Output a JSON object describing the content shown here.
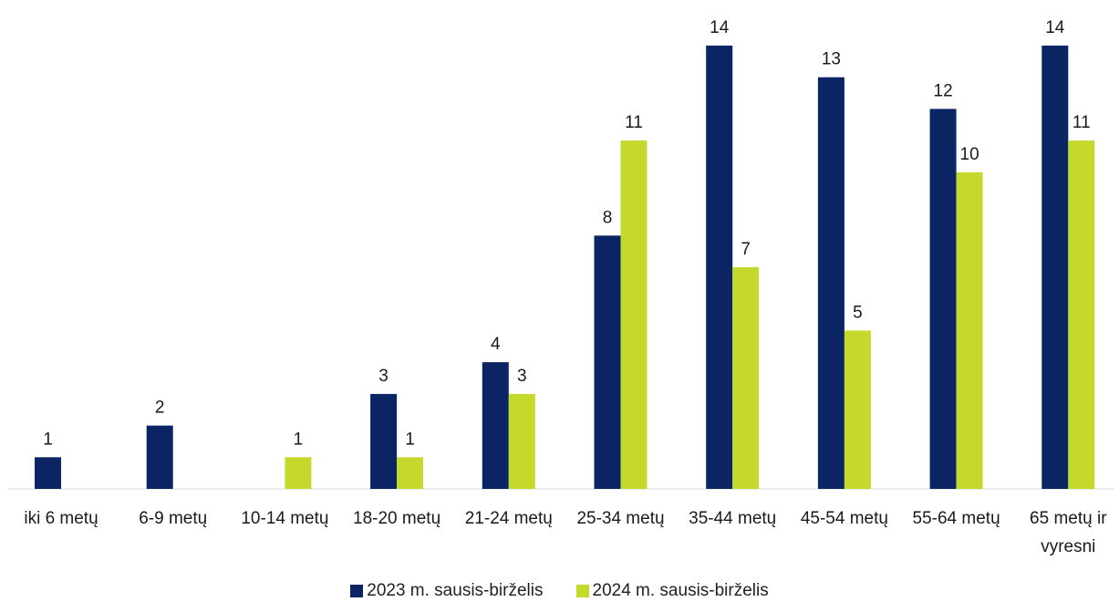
{
  "chart_data": {
    "type": "bar",
    "categories": [
      "iki 6 metų",
      "6-9 metų",
      "10-14 metų",
      "18-20 metų",
      "21-24 metų",
      "25-34 metų",
      "35-44 metų",
      "45-54 metų",
      "55-64 metų",
      "65 metų ir vyresni"
    ],
    "series": [
      {
        "name": "2023 m. sausis-birželis",
        "color": "#0b2463",
        "values": [
          1,
          2,
          null,
          3,
          4,
          8,
          14,
          13,
          12,
          14
        ]
      },
      {
        "name": "2024 m. sausis-birželis",
        "color": "#c5d92d",
        "values": [
          null,
          null,
          1,
          1,
          3,
          11,
          7,
          5,
          10,
          11
        ]
      }
    ],
    "ylim": [
      0,
      14
    ],
    "grid": false,
    "legend_position": "bottom"
  }
}
